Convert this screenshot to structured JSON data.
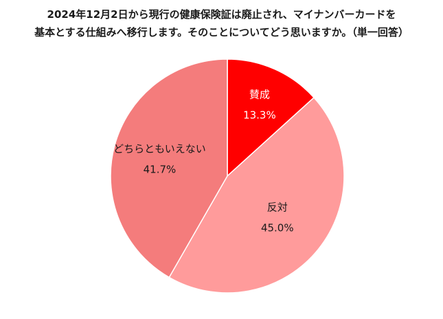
{
  "title_lines": [
    "2024年12月2日から現行の健康保険証は廃止され、マイナンバーカードを",
    "基本とする仕組みへ移行します。そのことについてどう思いますか。（単一回答）"
  ],
  "chart_data": {
    "type": "pie",
    "title": "2024年12月2日から現行の健康保険証は廃止され、マイナンバーカードを基本とする仕組みへ移行します。そのことについてどう思いますか。（単一回答）",
    "start_angle": "12 o'clock",
    "direction": "clockwise",
    "slices": [
      {
        "label": "賛成",
        "value": 13.3,
        "value_label": "13.3%",
        "color": "#ff0000",
        "text_color": "#ffffff"
      },
      {
        "label": "反対",
        "value": 45.0,
        "value_label": "45.0%",
        "color": "#ff9b9b",
        "text_color": "#1a1a1a"
      },
      {
        "label": "どちらともいえない",
        "value": 41.7,
        "value_label": "41.7%",
        "color": "#f47c7c",
        "text_color": "#1a1a1a"
      }
    ],
    "legend": "none"
  }
}
